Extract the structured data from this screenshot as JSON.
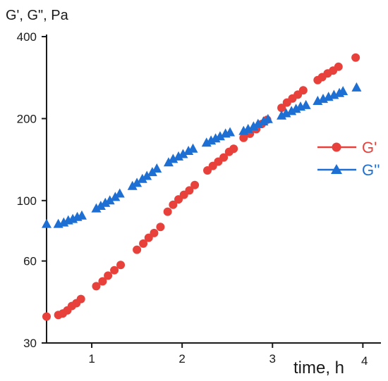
{
  "chart_data": {
    "type": "scatter",
    "ylabel": "G', G\", Pa",
    "xlabel": "time, h",
    "x_ticks": [
      1,
      2,
      3,
      4
    ],
    "x_tick_labels": [
      "1",
      "2",
      "3",
      "4"
    ],
    "xlim": [
      0.5,
      4.2
    ],
    "y_scale": "log",
    "ylim": [
      30,
      400
    ],
    "y_ticks": [
      30,
      60,
      100,
      200,
      400
    ],
    "y_tick_labels": [
      "30",
      "60",
      "100",
      "200",
      "400"
    ],
    "grid": false,
    "legend_position": "right",
    "series": [
      {
        "name": "G'",
        "color": "#e8413c",
        "marker": "circle",
        "x": [
          0.5,
          0.63,
          0.68,
          0.73,
          0.78,
          0.83,
          0.88,
          1.05,
          1.12,
          1.18,
          1.25,
          1.32,
          1.5,
          1.57,
          1.63,
          1.69,
          1.76,
          1.84,
          1.9,
          1.96,
          2.02,
          2.08,
          2.14,
          2.28,
          2.34,
          2.4,
          2.46,
          2.52,
          2.57,
          2.68,
          2.75,
          2.82,
          2.88,
          2.94,
          3.1,
          3.16,
          3.22,
          3.28,
          3.34,
          3.5,
          3.55,
          3.61,
          3.67,
          3.73,
          3.92
        ],
        "values": [
          37.5,
          38,
          38.5,
          39.5,
          41,
          42,
          43.5,
          48.5,
          50.5,
          53,
          55.5,
          58,
          66,
          69.5,
          73,
          76,
          80,
          91,
          96.5,
          101,
          105,
          109,
          114,
          129,
          134,
          139,
          144,
          151,
          155,
          170,
          176,
          183,
          191,
          198,
          219,
          229,
          237,
          245,
          254,
          277,
          284,
          293,
          300,
          310,
          335
        ]
      },
      {
        "name": "G''",
        "color": "#1d6fd3",
        "marker": "triangle",
        "x": [
          0.5,
          0.63,
          0.69,
          0.74,
          0.79,
          0.84,
          0.89,
          1.05,
          1.1,
          1.15,
          1.2,
          1.26,
          1.31,
          1.45,
          1.5,
          1.56,
          1.61,
          1.67,
          1.72,
          1.85,
          1.9,
          1.96,
          2.01,
          2.07,
          2.12,
          2.27,
          2.32,
          2.37,
          2.42,
          2.48,
          2.53,
          2.68,
          2.73,
          2.79,
          2.84,
          2.9,
          2.95,
          3.1,
          3.15,
          3.21,
          3.26,
          3.31,
          3.37,
          3.5,
          3.56,
          3.62,
          3.68,
          3.74,
          3.78,
          3.93
        ],
        "values": [
          82,
          82,
          83,
          84.5,
          85.5,
          87,
          88,
          93.5,
          95.5,
          98,
          100,
          103,
          106,
          113,
          116,
          120,
          123,
          127,
          131,
          138,
          142,
          145,
          148,
          152,
          155,
          163,
          166,
          169,
          172,
          176,
          178,
          180,
          183,
          187,
          191,
          195,
          199,
          205,
          209,
          213,
          217,
          221,
          224,
          232,
          236,
          240,
          244,
          248,
          252,
          260
        ]
      }
    ]
  }
}
